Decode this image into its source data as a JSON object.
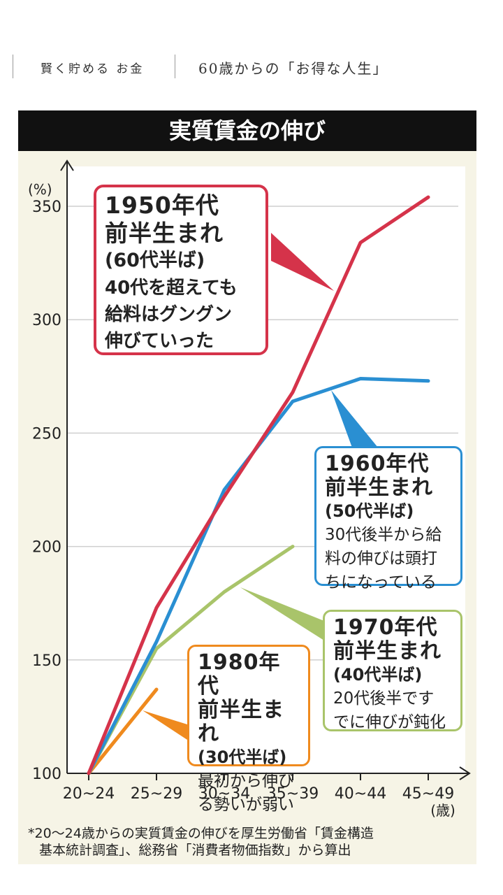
{
  "header": {
    "category": "賢く貯める お金",
    "series": "60歳からの「お得な人生」"
  },
  "chart_data": {
    "type": "line",
    "title": "実質賃金の伸び",
    "ylabel": "(%)",
    "xlabel": "(歳)",
    "ylim": [
      100,
      350
    ],
    "yticks": [
      100,
      150,
      200,
      250,
      300,
      350
    ],
    "categories": [
      "20~24",
      "25~29",
      "30~34",
      "35~39",
      "40~44",
      "45~49"
    ],
    "grid": true,
    "series": [
      {
        "name": "1950年代前半生まれ",
        "color": "#d5334a",
        "values": [
          100,
          173,
          222,
          268,
          334,
          354
        ]
      },
      {
        "name": "1960年代前半生まれ",
        "color": "#2a8fd2",
        "values": [
          100,
          158,
          225,
          264,
          274,
          273
        ]
      },
      {
        "name": "1970年代前半生まれ",
        "color": "#a9c46a",
        "values": [
          100,
          155,
          180,
          200,
          null,
          null
        ]
      },
      {
        "name": "1980年代前半生まれ",
        "color": "#ef8a1e",
        "values": [
          100,
          137,
          null,
          null,
          null,
          null
        ]
      }
    ],
    "annotations": [
      {
        "id": "c1950",
        "title": "1950年代前半生まれ",
        "line1": "1950年代",
        "line2": "前半生まれ",
        "age": "(60代半ば)",
        "desc": [
          "40代を超えても",
          "給料はグングン",
          "伸びていった"
        ]
      },
      {
        "id": "c1960",
        "title": "1960年代前半生まれ",
        "line1": "1960年代",
        "line2": "前半生まれ",
        "age": "(50代半ば)",
        "desc": [
          "30代後半から給",
          "料の伸びは頭打",
          "ちになっている"
        ]
      },
      {
        "id": "c1970",
        "title": "1970年代前半生まれ",
        "line1": "1970年代",
        "line2": "前半生まれ",
        "age": "(40代半ば)",
        "desc": [
          "20代後半です",
          "でに伸びが鈍化"
        ]
      },
      {
        "id": "c1980",
        "title": "1980年代前半生まれ",
        "line1": "1980年代",
        "line2": "前半生まれ",
        "age": "(30代半ば)",
        "desc": [
          "最初から伸び",
          "る勢いが弱い"
        ]
      }
    ],
    "footnote": [
      "*20～24歳からの実質賃金の伸びを厚生労働省「賃金構造",
      "基本統計調査」、総務省「消費者物価指数」から算出"
    ]
  }
}
